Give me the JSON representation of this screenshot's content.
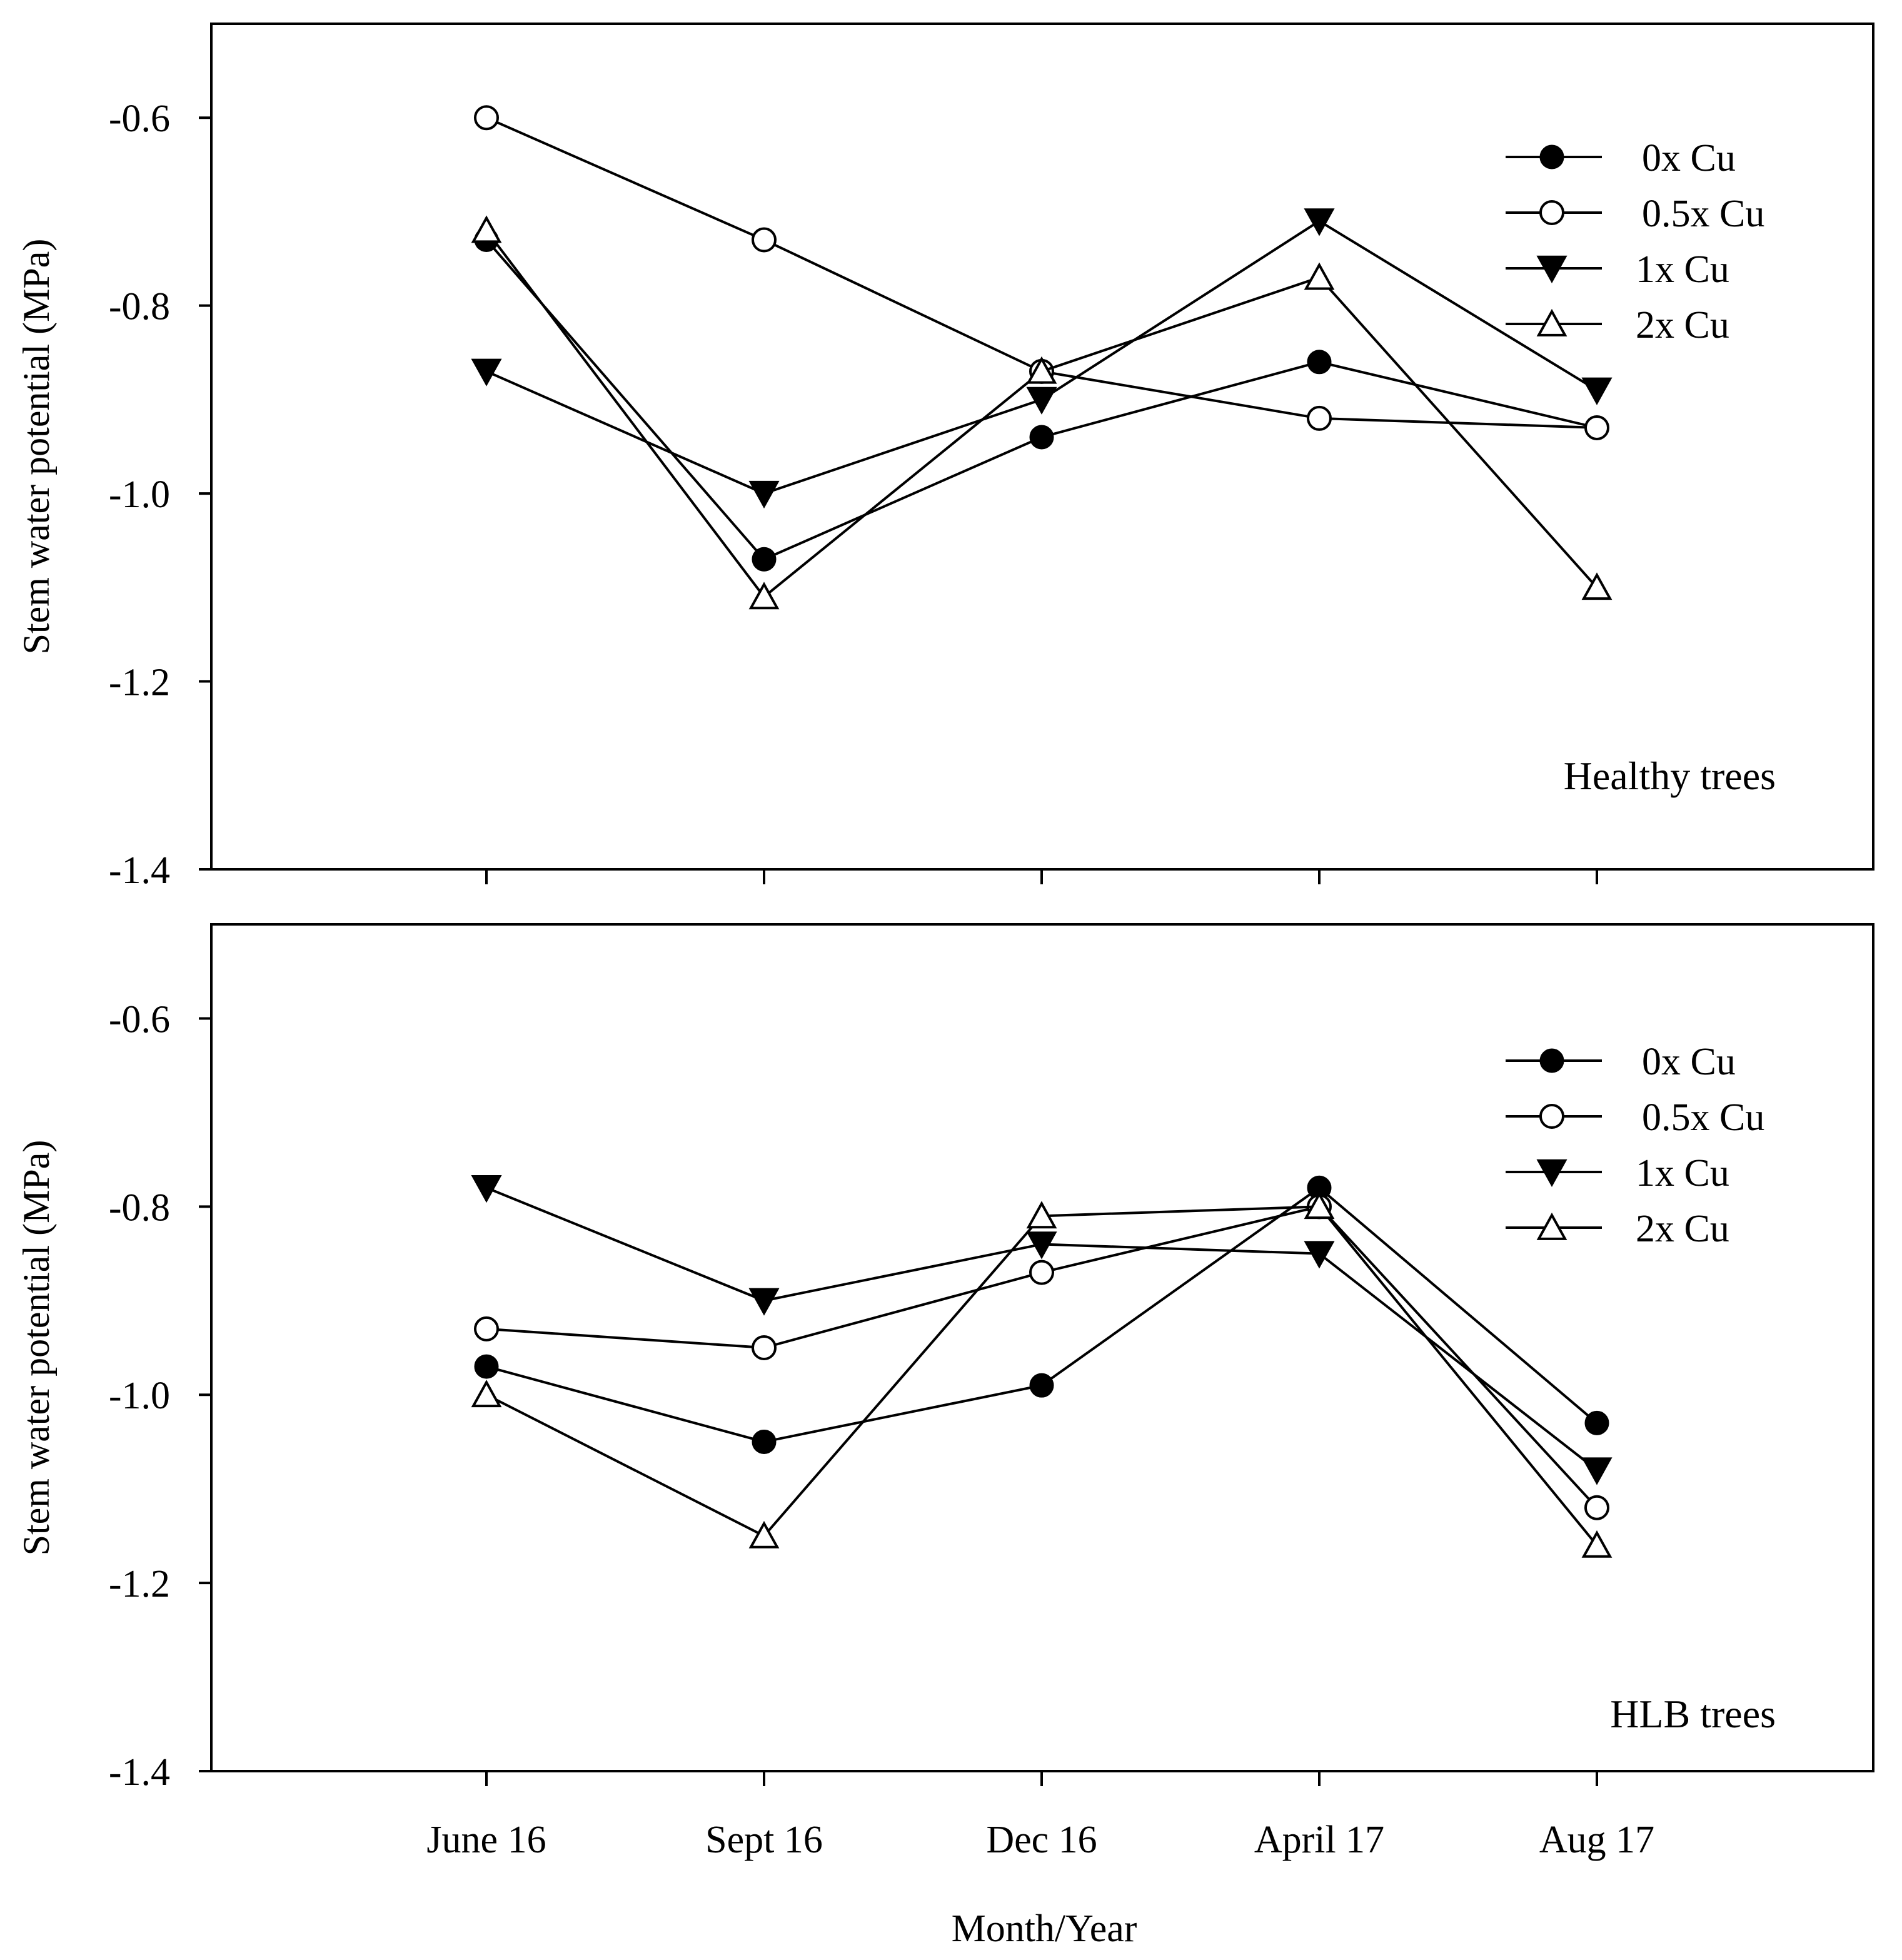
{
  "chart_data": [
    {
      "type": "line",
      "panel_label": "Healthy trees",
      "xlabel": "",
      "ylabel": "Stem water potential (MPa)",
      "categories": [
        "June 16",
        "Sept 16",
        "Dec 16",
        "April 17",
        "Aug 17"
      ],
      "ylim": [
        -1.4,
        -0.5
      ],
      "yticks": [
        -0.6,
        -0.8,
        -1.0,
        -1.2,
        -1.4
      ],
      "ytick_labels": [
        "-0.6",
        "-0.8",
        "-1.0",
        "-1.2",
        "-1.4"
      ],
      "legend_position": "top-right",
      "grid": false,
      "series": [
        {
          "name": "0x Cu",
          "marker": "filled-circle",
          "values": [
            -0.73,
            -1.07,
            -0.94,
            -0.86,
            -0.93
          ]
        },
        {
          "name": "0.5x Cu",
          "marker": "open-circle",
          "values": [
            -0.6,
            -0.73,
            -0.87,
            -0.92,
            -0.93
          ]
        },
        {
          "name": "1x Cu",
          "marker": "filled-triangle-down",
          "values": [
            -0.87,
            -1.0,
            -0.9,
            -0.71,
            -0.89
          ]
        },
        {
          "name": "2x Cu",
          "marker": "open-triangle-up",
          "values": [
            -0.72,
            -1.11,
            -0.87,
            -0.77,
            -1.1
          ]
        }
      ]
    },
    {
      "type": "line",
      "panel_label": "HLB trees",
      "xlabel": "Month/Year",
      "ylabel": "Stem water potential (MPa)",
      "categories": [
        "June 16",
        "Sept 16",
        "Dec 16",
        "April 17",
        "Aug 17"
      ],
      "ylim": [
        -1.4,
        -0.5
      ],
      "yticks": [
        -0.6,
        -0.8,
        -1.0,
        -1.2,
        -1.4
      ],
      "ytick_labels": [
        "-0.6",
        "-0.8",
        "-1.0",
        "-1.2",
        "-1.4"
      ],
      "legend_position": "top-right",
      "grid": false,
      "series": [
        {
          "name": "0x Cu",
          "marker": "filled-circle",
          "values": [
            -0.97,
            -1.05,
            -0.99,
            -0.78,
            -1.03
          ]
        },
        {
          "name": "0.5x Cu",
          "marker": "open-circle",
          "values": [
            -0.93,
            -0.95,
            -0.87,
            -0.8,
            -1.12
          ]
        },
        {
          "name": "1x Cu",
          "marker": "filled-triangle-down",
          "values": [
            -0.78,
            -0.9,
            -0.84,
            -0.85,
            -1.08
          ]
        },
        {
          "name": "2x Cu",
          "marker": "open-triangle-up",
          "values": [
            -1.0,
            -1.15,
            -0.81,
            -0.8,
            -1.16
          ]
        }
      ]
    }
  ]
}
